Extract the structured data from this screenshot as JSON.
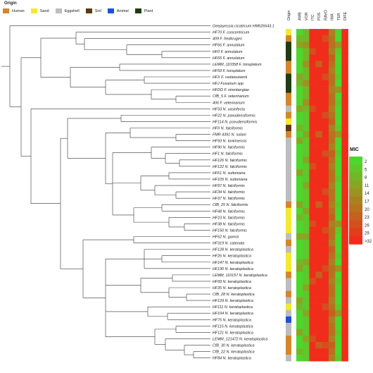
{
  "legend": {
    "title": "Origin",
    "items": [
      {
        "label": "Human",
        "color": "#d4862a"
      },
      {
        "label": "Sand",
        "color": "#f3e832"
      },
      {
        "label": "Eggshell",
        "color": "#bdbdbd"
      },
      {
        "label": "Soil",
        "color": "#5a3a12"
      },
      {
        "label": "Animal",
        "color": "#1f4fd8"
      },
      {
        "label": "Plant",
        "color": "#1e3d10"
      }
    ]
  },
  "column_headers": [
    "Origin",
    "AMB",
    "VOR",
    "ITC",
    "POS",
    "RAVO",
    "IMA",
    "TER",
    "DIFE"
  ],
  "mic_legend": {
    "title": "MIC",
    "labels": [
      "2",
      "5",
      "8",
      "11",
      "14",
      "17",
      "20",
      "23",
      "26",
      "29",
      ">32"
    ],
    "colors": [
      "#4ed62d",
      "#5ec82a",
      "#72b727",
      "#88a624",
      "#9b9322",
      "#a98220",
      "#b8711f",
      "#c6601e",
      "#d44f1d",
      "#e23d1c",
      "#f02d1a"
    ]
  },
  "taxa": [
    {
      "label": "Geejayessia cicatricum HM626643.1",
      "origin": ""
    },
    {
      "label": "HF70 F. concentricum",
      "origin": "Sand"
    },
    {
      "label": "409 F. fredkrugeri",
      "origin": "Human"
    },
    {
      "label": "HF66 F. annulatum",
      "origin": "Plant"
    },
    {
      "label": "HF0 F. annulatum",
      "origin": "Plant"
    },
    {
      "label": "HF65 F. annulatum",
      "origin": "Plant"
    },
    {
      "label": "LEMM_110358 F. tonsplatum",
      "origin": "Human"
    },
    {
      "label": "HF59 F. tonsplatum",
      "origin": "Human"
    },
    {
      "label": "HFX F. vasteeuwenii",
      "origin": "Plant"
    },
    {
      "label": "HFJ Fusarium spp",
      "origin": "Plant"
    },
    {
      "label": "HFDD F. nirenbergiae",
      "origin": "Plant"
    },
    {
      "label": "CfB_5 F. veterinarium",
      "origin": "Human"
    },
    {
      "label": "406 F. veterinarium",
      "origin": "Human"
    },
    {
      "label": "HF33 N. vasinfecta",
      "origin": "Eggshell"
    },
    {
      "label": "HF22 N. pseudensiformis",
      "origin": "Human"
    },
    {
      "label": "HF114 N. pseudensiformis",
      "origin": "Sand"
    },
    {
      "label": "HFII N. falciformis",
      "origin": "Soil"
    },
    {
      "label": "FMR 4391 N. solani",
      "origin": "Human"
    },
    {
      "label": "HF93 N. tonkinensis",
      "origin": "Eggshell"
    },
    {
      "label": "HF90 N. falciformis",
      "origin": "Eggshell"
    },
    {
      "label": "HF1 N. falciformis",
      "origin": "Eggshell"
    },
    {
      "label": "HF126 N. falciformis",
      "origin": "Eggshell"
    },
    {
      "label": "HF122 N. falciformis",
      "origin": "Eggshell"
    },
    {
      "label": "HF61 N. suttoniana",
      "origin": "Eggshell"
    },
    {
      "label": "HF105 N. suttoniana",
      "origin": "Eggshell"
    },
    {
      "label": "HF97 N. falciformis",
      "origin": "Eggshell"
    },
    {
      "label": "HF34 N. falciformis",
      "origin": "Eggshell"
    },
    {
      "label": "HF37 N. falciformis",
      "origin": "Eggshell"
    },
    {
      "label": "CfB_25 N. falciformis",
      "origin": "Human"
    },
    {
      "label": "HF48 N. falciformis",
      "origin": "Sand"
    },
    {
      "label": "HF23 N. falciformis",
      "origin": "Sand"
    },
    {
      "label": "HF38 N. falciformis",
      "origin": "Sand"
    },
    {
      "label": "HF150 N. falciformis",
      "origin": "Sand"
    },
    {
      "label": "HF62 N. gamsii",
      "origin": "Eggshell"
    },
    {
      "label": "HF319 N. catenata",
      "origin": "Human"
    },
    {
      "label": "HF128 N. keratoplastica",
      "origin": "Eggshell"
    },
    {
      "label": "HF26 N. keratoplastica",
      "origin": "Sand"
    },
    {
      "label": "HF147 N. keratoplastica",
      "origin": "Sand"
    },
    {
      "label": "HF130 N. keratoplastica",
      "origin": "Sand"
    },
    {
      "label": "LEMM_110157 N. keratoplastica",
      "origin": "Human"
    },
    {
      "label": "HF99 N. keratoplastica",
      "origin": "Eggshell"
    },
    {
      "label": "HF35 N. keratoplastica",
      "origin": "Eggshell"
    },
    {
      "label": "CfB_28 N. keratoplastica",
      "origin": "Human"
    },
    {
      "label": "HF129 N. keratoplastica",
      "origin": "Eggshell"
    },
    {
      "label": "HF111 N. keratoplastica",
      "origin": "Sand"
    },
    {
      "label": "HF104 N. keratoplastica",
      "origin": "Eggshell"
    },
    {
      "label": "HF75 N. keratoplastica",
      "origin": "Animal"
    },
    {
      "label": "HF115 N. keratoplastica",
      "origin": "Eggshell"
    },
    {
      "label": "HF121 N. keratoplastica",
      "origin": "Eggshell"
    },
    {
      "label": "LEMM_121472 N. keratoplastica",
      "origin": "Human"
    },
    {
      "label": "CfB_30 N. keratoplastica",
      "origin": "Human"
    },
    {
      "label": "CfB_22 N. keratoplastica",
      "origin": "Human"
    },
    {
      "label": "HF84 N. keratoplastica",
      "origin": "Eggshell"
    }
  ]
}
